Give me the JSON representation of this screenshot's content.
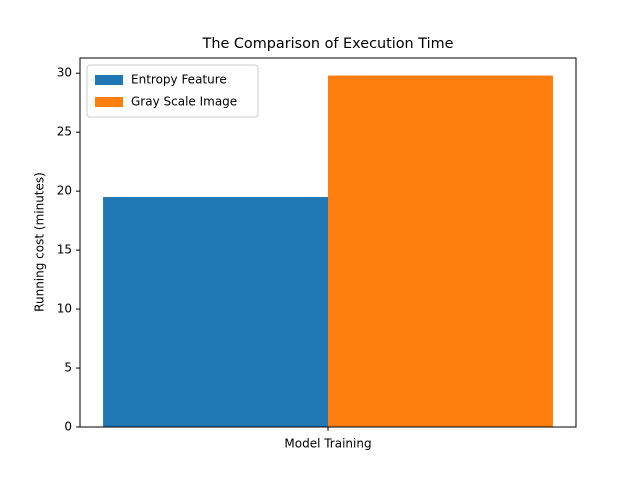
{
  "chart_data": {
    "type": "bar",
    "title": "The Comparison of Execution Time",
    "categories": [
      "Model Training"
    ],
    "series": [
      {
        "name": "Entropy Feature",
        "color": "#1f77b4",
        "values": [
          19.5
        ]
      },
      {
        "name": "Gray Scale Image",
        "color": "#ff7f0e",
        "values": [
          29.8
        ]
      }
    ],
    "ylabel": "Running cost (minutes)",
    "ylim": [
      0,
      31.29
    ],
    "yticks": [
      0,
      5,
      10,
      15,
      20,
      25,
      30
    ],
    "legend": "upper left",
    "grid": false
  }
}
